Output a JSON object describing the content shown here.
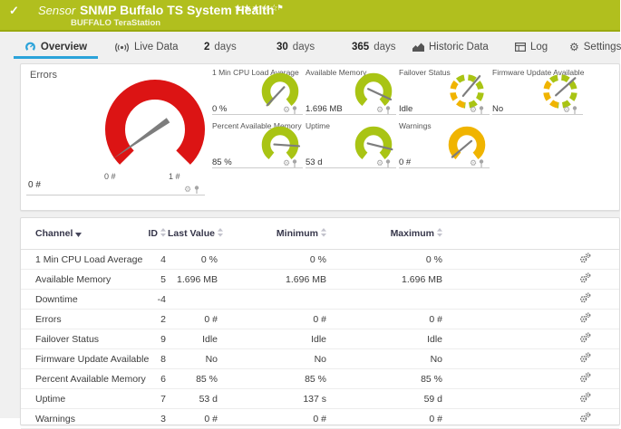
{
  "titlebar": {
    "kind_label": "Sensor",
    "title": "SNMP Buffalo TS System Health",
    "device": "BUFFALO TeraStation",
    "rating": "★★★☆☆",
    "bg_color": "#b1bf1e"
  },
  "tabs": {
    "overview": "Overview",
    "live_data": "Live Data",
    "d2_num": "2",
    "d2_word": "days",
    "d30_num": "30",
    "d30_word": "days",
    "d365_num": "365",
    "d365_word": "days",
    "historic": "Historic Data",
    "log": "Log",
    "settings": "Settings",
    "active_color": "#2ba3da"
  },
  "gauges": {
    "main": {
      "type": "main",
      "label": "Errors",
      "value": "0 #",
      "scale_min": "0 #",
      "scale_max": "1 #",
      "color": "#dc1414",
      "needle": 145
    },
    "cpu": {
      "type": "solid",
      "label": "1 Min CPU Load Average",
      "value": "0 %",
      "color": "#a9c414",
      "needle": 133
    },
    "mem": {
      "type": "solid",
      "label": "Available Memory",
      "value": "1.696 MB",
      "color": "#a9c414",
      "needle": 25
    },
    "failover": {
      "type": "segmented",
      "label": "Failover Status",
      "value": "Idle",
      "color": "#a9c414",
      "color2": "#f0b400",
      "needle": -50
    },
    "firmware": {
      "type": "segmented",
      "label": "Firmware Update Available",
      "value": "No",
      "color": "#a9c414",
      "color2": "#f0b400",
      "needle": -42
    },
    "pmem": {
      "type": "solid",
      "label": "Percent Available Memory",
      "value": "85 %",
      "color": "#a9c414",
      "needle": 4
    },
    "uptime": {
      "type": "solid",
      "label": "Uptime",
      "value": "53 d",
      "color": "#a9c414",
      "needle": 14
    },
    "warnings": {
      "type": "solid",
      "label": "Warnings",
      "value": "0 #",
      "color": "#f0b400",
      "needle": 140
    }
  },
  "table": {
    "headers": {
      "channel": "Channel",
      "id": "ID",
      "last": "Last Value",
      "min": "Minimum",
      "max": "Maximum"
    },
    "rows": [
      {
        "channel": "1 Min CPU Load Average",
        "id": "4",
        "last": "0 %",
        "min": "0 %",
        "max": "0 %"
      },
      {
        "channel": "Available Memory",
        "id": "5",
        "last": "1.696 MB",
        "min": "1.696 MB",
        "max": "1.696 MB"
      },
      {
        "channel": "Downtime",
        "id": "-4",
        "last": "",
        "min": "",
        "max": ""
      },
      {
        "channel": "Errors",
        "id": "2",
        "last": "0 #",
        "min": "0 #",
        "max": "0 #"
      },
      {
        "channel": "Failover Status",
        "id": "9",
        "last": "Idle",
        "min": "Idle",
        "max": "Idle"
      },
      {
        "channel": "Firmware Update Available",
        "id": "8",
        "last": "No",
        "min": "No",
        "max": "No"
      },
      {
        "channel": "Percent Available Memory",
        "id": "6",
        "last": "85 %",
        "min": "85 %",
        "max": "85 %"
      },
      {
        "channel": "Uptime",
        "id": "7",
        "last": "53 d",
        "min": "137 s",
        "max": "59 d"
      },
      {
        "channel": "Warnings",
        "id": "3",
        "last": "0 #",
        "min": "0 #",
        "max": "0 #"
      }
    ]
  }
}
